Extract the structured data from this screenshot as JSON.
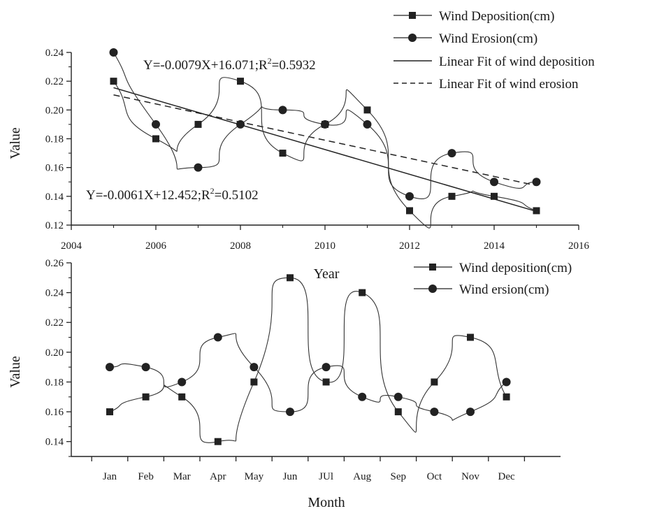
{
  "chart_data": [
    {
      "type": "line",
      "xlabel": "Year",
      "ylabel": "Value",
      "xlim": [
        2004,
        2016
      ],
      "ylim": [
        0.12,
        0.24
      ],
      "x_ticks": [
        "2004",
        "2006",
        "2008",
        "2010",
        "2012",
        "2014",
        "2016"
      ],
      "y_ticks": [
        "0.12",
        "0.14",
        "0.16",
        "0.18",
        "0.20",
        "0.22",
        "0.24"
      ],
      "x": [
        2005,
        2006,
        2007,
        2008,
        2009,
        2010,
        2011,
        2012,
        2013,
        2014,
        2015
      ],
      "series": [
        {
          "name": "Wind Deposition(cm)",
          "marker": "square",
          "values": [
            0.22,
            0.18,
            0.19,
            0.22,
            0.17,
            0.19,
            0.2,
            0.13,
            0.14,
            0.14,
            0.13
          ]
        },
        {
          "name": "Wind Erosion(cm)",
          "marker": "circle",
          "values": [
            0.24,
            0.19,
            0.16,
            0.19,
            0.2,
            0.19,
            0.19,
            0.14,
            0.17,
            0.15,
            0.15
          ]
        }
      ],
      "fits": [
        {
          "name": "Linear Fit of wind deposition",
          "style": "solid",
          "equation": "Y=-0.0079X+16.071;R",
          "r2": "=0.5932",
          "x": [
            2005,
            2015
          ],
          "y": [
            0.2155,
            0.1295
          ]
        },
        {
          "name": "Linear Fit of wind erosion",
          "style": "dashed",
          "equation": "Y=-0.0061X+12.452;R",
          "r2": "=0.5102",
          "x": [
            2005,
            2015
          ],
          "y": [
            0.2105,
            0.1475
          ]
        }
      ],
      "superscript": "2",
      "legend_position": "top-right",
      "grid": false
    },
    {
      "type": "line",
      "xlabel": "Month",
      "ylabel": "Value",
      "ylim": [
        0.13,
        0.26
      ],
      "y_ticks": [
        "0.14",
        "0.16",
        "0.18",
        "0.20",
        "0.22",
        "0.24",
        "0.26"
      ],
      "categories": [
        "Jan",
        "Feb",
        "Mar",
        "Apr",
        "May",
        "Jun",
        "JUl",
        "Aug",
        "Sep",
        "Oct",
        "Nov",
        "Dec"
      ],
      "series": [
        {
          "name": "Wind deposition(cm)",
          "marker": "square",
          "values": [
            0.16,
            0.17,
            0.17,
            0.14,
            0.18,
            0.25,
            0.18,
            0.24,
            0.16,
            0.18,
            0.21,
            0.17
          ]
        },
        {
          "name": "Wind ersion(cm)",
          "marker": "circle",
          "values": [
            0.19,
            0.19,
            0.18,
            0.21,
            0.19,
            0.16,
            0.19,
            0.17,
            0.17,
            0.16,
            0.16,
            0.18
          ]
        }
      ],
      "legend_position": "top-right",
      "grid": false
    }
  ]
}
